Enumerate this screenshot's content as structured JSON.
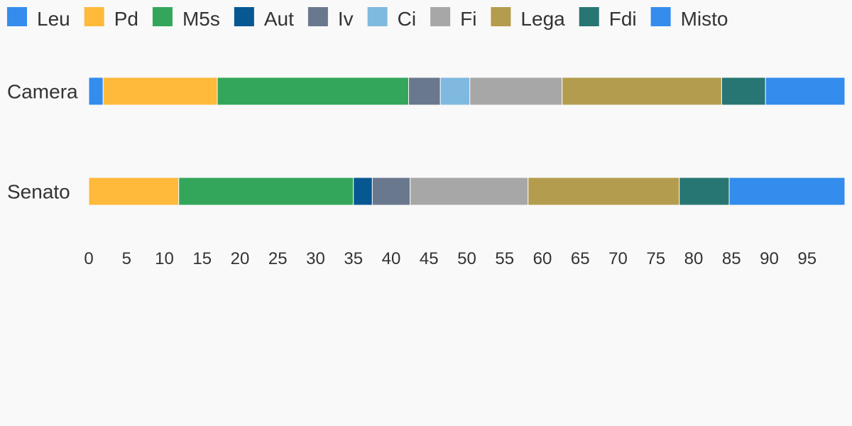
{
  "chart_data": {
    "type": "bar",
    "orientation": "horizontal",
    "stacked": true,
    "title": "",
    "xlabel": "",
    "ylabel": "",
    "categories": [
      "Camera",
      "Senato"
    ],
    "xlim": [
      0,
      100
    ],
    "xticks": [
      0,
      5,
      10,
      15,
      20,
      25,
      30,
      35,
      40,
      45,
      50,
      55,
      60,
      65,
      70,
      75,
      80,
      85,
      90,
      95
    ],
    "grid": false,
    "legend_position": "top-left",
    "series": [
      {
        "name": "Leu",
        "color": "#348ced",
        "values": [
          1.9,
          0
        ]
      },
      {
        "name": "Pd",
        "color": "#ffb93b",
        "values": [
          15.1,
          11.9
        ]
      },
      {
        "name": "M5s",
        "color": "#34a65c",
        "values": [
          25.3,
          23.1
        ]
      },
      {
        "name": "Aut",
        "color": "#075793",
        "values": [
          0,
          2.5
        ]
      },
      {
        "name": "Iv",
        "color": "#6a788e",
        "values": [
          4.2,
          5.0
        ]
      },
      {
        "name": "Ci",
        "color": "#7fb9e0",
        "values": [
          3.9,
          0
        ]
      },
      {
        "name": "Fi",
        "color": "#a7a7a7",
        "values": [
          12.2,
          15.6
        ]
      },
      {
        "name": "Lega",
        "color": "#b39c4d",
        "values": [
          21.1,
          20.0
        ]
      },
      {
        "name": "Fdi",
        "color": "#287673",
        "values": [
          5.8,
          6.6
        ]
      },
      {
        "name": "Misto",
        "color": "#348ced",
        "values": [
          10.5,
          15.3
        ]
      }
    ]
  }
}
